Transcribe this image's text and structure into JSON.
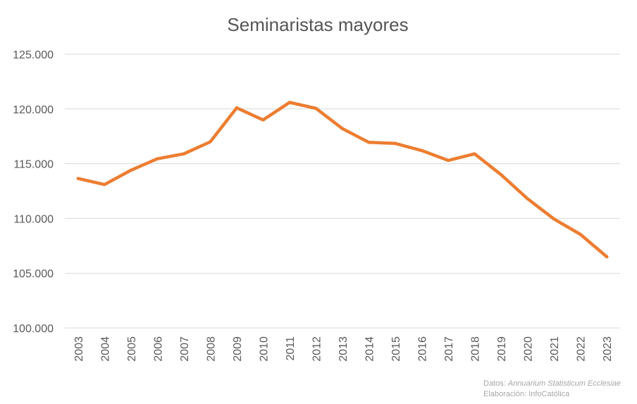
{
  "chart_data": {
    "type": "line",
    "title": "Seminaristas mayores",
    "categories": [
      "2003",
      "2004",
      "2005",
      "2006",
      "2007",
      "2008",
      "2009",
      "2010",
      "2011",
      "2012",
      "2013",
      "2014",
      "2015",
      "2016",
      "2017",
      "2018",
      "2019",
      "2020",
      "2021",
      "2022",
      "2023"
    ],
    "series": [
      {
        "name": "Seminaristas mayores",
        "color": "#ed7d31",
        "values": [
          113650,
          113100,
          114400,
          115450,
          115900,
          117000,
          120100,
          119000,
          120600,
          120050,
          118200,
          116950,
          116850,
          116200,
          115300,
          115900,
          114000,
          111800,
          109950,
          108550,
          106500
        ]
      }
    ],
    "ylim": [
      100000,
      125000
    ],
    "yticks": [
      100000,
      105000,
      110000,
      115000,
      120000,
      125000
    ],
    "ytick_labels": [
      "100.000",
      "105.000",
      "110.000",
      "115.000",
      "120.000",
      "125.000"
    ],
    "xlabel": "",
    "ylabel": "",
    "grid": true
  },
  "source": {
    "datos_label": "Datos: ",
    "datos_value": "Annuarium Statisticum Ecclesiae",
    "elaboracion": "Elaboración: InfoCatólica"
  }
}
